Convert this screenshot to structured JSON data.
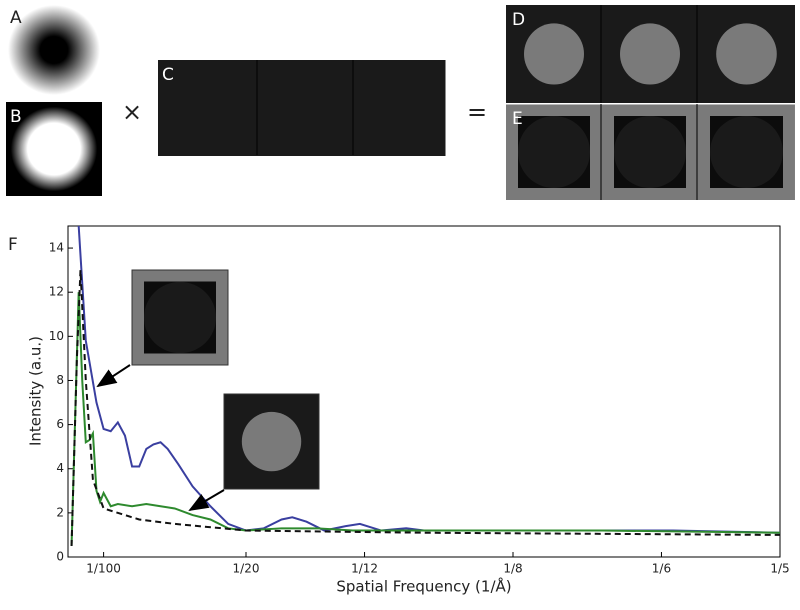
{
  "panels": {
    "labels": [
      "A",
      "B",
      "C",
      "D",
      "E"
    ],
    "operators": [
      "×",
      "="
    ]
  },
  "chart_data": {
    "type": "line",
    "label": "F",
    "x_label": "Spatial Frequency (1/Å)",
    "y_label": "Intensity (a.u.)",
    "xlim": [
      0,
      0.2
    ],
    "ylim": [
      0,
      15
    ],
    "xticks": [
      {
        "value": 0.01,
        "label": "1/100"
      },
      {
        "value": 0.05,
        "label": "1/20"
      },
      {
        "value": 0.0833,
        "label": "1/12"
      },
      {
        "value": 0.125,
        "label": "1/8"
      },
      {
        "value": 0.1667,
        "label": "1/6"
      },
      {
        "value": 0.2,
        "label": "1/5"
      }
    ],
    "yticks": [
      0,
      2,
      4,
      6,
      8,
      10,
      12,
      14
    ],
    "series": [
      {
        "color": "#3a3fa0",
        "dash": false,
        "x": [
          0.003,
          0.005,
          0.008,
          0.01,
          0.012,
          0.014,
          0.016,
          0.018,
          0.02,
          0.022,
          0.024,
          0.026,
          0.028,
          0.031,
          0.035,
          0.04,
          0.045,
          0.05,
          0.055,
          0.06,
          0.063,
          0.067,
          0.072,
          0.078,
          0.082,
          0.088,
          0.095,
          0.1,
          0.11,
          0.13,
          0.15,
          0.17,
          0.2
        ],
        "values": [
          15,
          9.8,
          7.0,
          5.8,
          5.7,
          6.1,
          5.5,
          4.1,
          4.1,
          4.9,
          5.1,
          5.2,
          4.9,
          4.2,
          3.2,
          2.3,
          1.5,
          1.2,
          1.3,
          1.7,
          1.8,
          1.6,
          1.2,
          1.4,
          1.5,
          1.2,
          1.3,
          1.2,
          1.2,
          1.2,
          1.2,
          1.2,
          1.1
        ]
      },
      {
        "color": "#2e8a2e",
        "dash": false,
        "x": [
          0.001,
          0.003,
          0.004,
          0.005,
          0.006,
          0.007,
          0.008,
          0.009,
          0.01,
          0.012,
          0.014,
          0.018,
          0.022,
          0.026,
          0.03,
          0.035,
          0.04,
          0.045,
          0.05,
          0.06,
          0.07,
          0.08,
          0.1,
          0.15,
          0.2
        ],
        "values": [
          0.5,
          12,
          8,
          5.2,
          5.3,
          5.6,
          3.0,
          2.5,
          2.9,
          2.3,
          2.4,
          2.3,
          2.4,
          2.3,
          2.2,
          1.9,
          1.7,
          1.3,
          1.2,
          1.3,
          1.3,
          1.2,
          1.2,
          1.2,
          1.1
        ]
      },
      {
        "color": "#111111",
        "dash": true,
        "x": [
          0.001,
          0.0025,
          0.0035,
          0.005,
          0.007,
          0.01,
          0.02,
          0.03,
          0.05,
          0.1,
          0.15,
          0.2
        ],
        "values": [
          0.5,
          9,
          13,
          8,
          3.5,
          2.2,
          1.7,
          1.5,
          1.2,
          1.1,
          1.05,
          1.0
        ]
      }
    ]
  }
}
